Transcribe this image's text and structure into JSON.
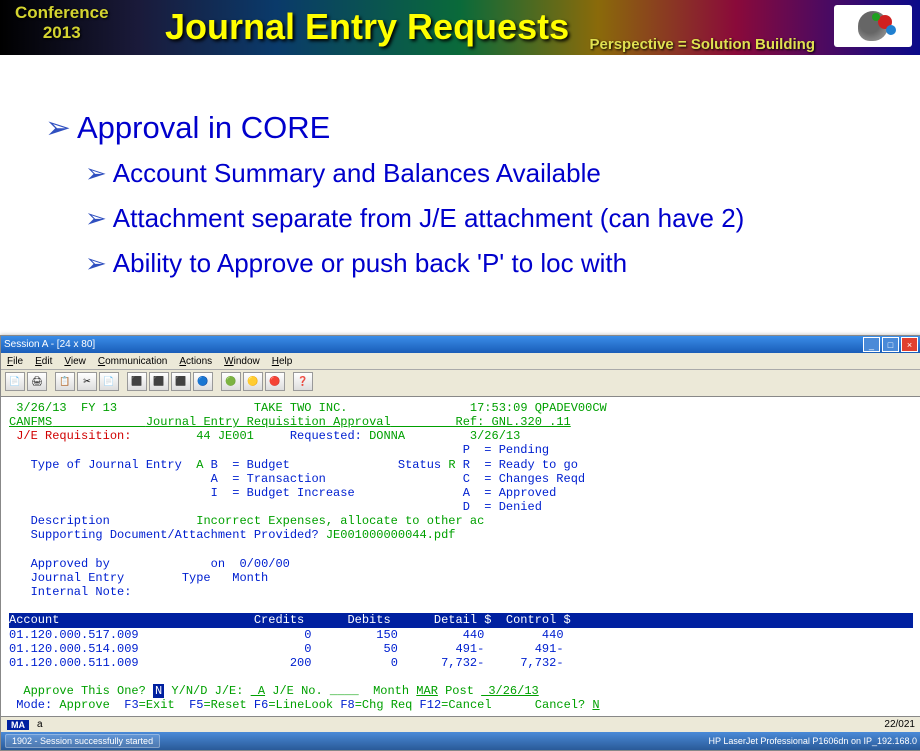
{
  "header": {
    "conference_line1": "Conference",
    "conference_line2": "2013",
    "title": "Journal Entry Requests",
    "tagline": "Perspective = Solution Building"
  },
  "bullets": {
    "l1": "Approval in CORE",
    "l2a": "Account Summary and Balances Available",
    "l2b": "Attachment separate from J/E attachment (can have 2)",
    "l2c": "Ability to Approve or push back 'P' to loc with"
  },
  "terminal": {
    "window_title": "Session A - [24 x 80]",
    "menu": {
      "file": "File",
      "edit": "Edit",
      "view": "View",
      "comm": "Communication",
      "actions": "Actions",
      "window": "Window",
      "help": "Help"
    },
    "line1_date": " 3/26/13  FY 13",
    "line1_company": "TAKE TWO INC.",
    "line1_time": "17:53:09 QPADEV00CW",
    "line2_sys": "CANFMS",
    "line2_title": "Journal Entry Requisition Approval",
    "line2_ref": "Ref: GNL.320 .11",
    "req_label": " J/E Requisition:",
    "req_num": "44 JE001",
    "req_by_label": "Requested: ",
    "req_by": "DONNA",
    "req_date": "3/26/13",
    "status_p": "P  = Pending",
    "type_label": "   Type of Journal Entry  ",
    "type_val": "A",
    "type_b": " B  = Budget",
    "status_label": "Status ",
    "status_val": "R",
    "status_r": " R  = Ready to go",
    "type_a": "A  = Transaction",
    "status_c": "C  = Changes Reqd",
    "type_i": "I  = Budget Increase",
    "status_a": "A  = Approved",
    "status_d": "D  = Denied",
    "desc_label": "   Description",
    "desc_val": "Incorrect Expenses, allocate to other ac",
    "attach_label": "   Supporting Document/Attachment Provided? ",
    "attach_val": "JE001000000044.pdf",
    "approved_label": "   Approved by",
    "approved_date": "on  0/00/00",
    "je_label": "   Journal Entry",
    "je_type": "Type",
    "je_month": "Month",
    "note_label": "   Internal Note:",
    "table_header": "Account                           Credits      Debits      Detail $  Control $",
    "rows": [
      {
        "acct": "01.120.000.517.009",
        "cr": "0",
        "db": "150",
        "det": "440",
        "ctl": "440"
      },
      {
        "acct": "01.120.000.514.009",
        "cr": "0",
        "db": "50",
        "det": "491-",
        "ctl": "491-"
      },
      {
        "acct": "01.120.000.511.009",
        "cr": "200",
        "db": "0",
        "det": "7,732-",
        "ctl": "7,732-"
      }
    ],
    "approve_q": "  Approve This One? ",
    "approve_in": "N",
    "approve_ynd": " Y/N/D J/E: ",
    "je_val": " A",
    "je_no": " J/E No. ____  Month ",
    "month_val": "MAR",
    "post_label": " Post ",
    "post_val": " 3/26/13",
    "mode_label": " Mode: ",
    "mode_val": "Approve",
    "f3": "F3",
    "f3l": "=Exit  ",
    "f5": "F5",
    "f5l": "=Reset ",
    "f6": "F6",
    "f6l": "=LineLook ",
    "f8": "F8",
    "f8l": "=Chg Req ",
    "f12": "F12",
    "f12l": "=Cancel",
    "cancel_q": "      Cancel? ",
    "cancel_v": "N",
    "status_pos": "22/021",
    "status_a_char": "a",
    "taskbar_item": "1902 - Session successfully started",
    "taskbar_printer": "HP LaserJet Professional P1606dn on IP_192.168.0"
  }
}
